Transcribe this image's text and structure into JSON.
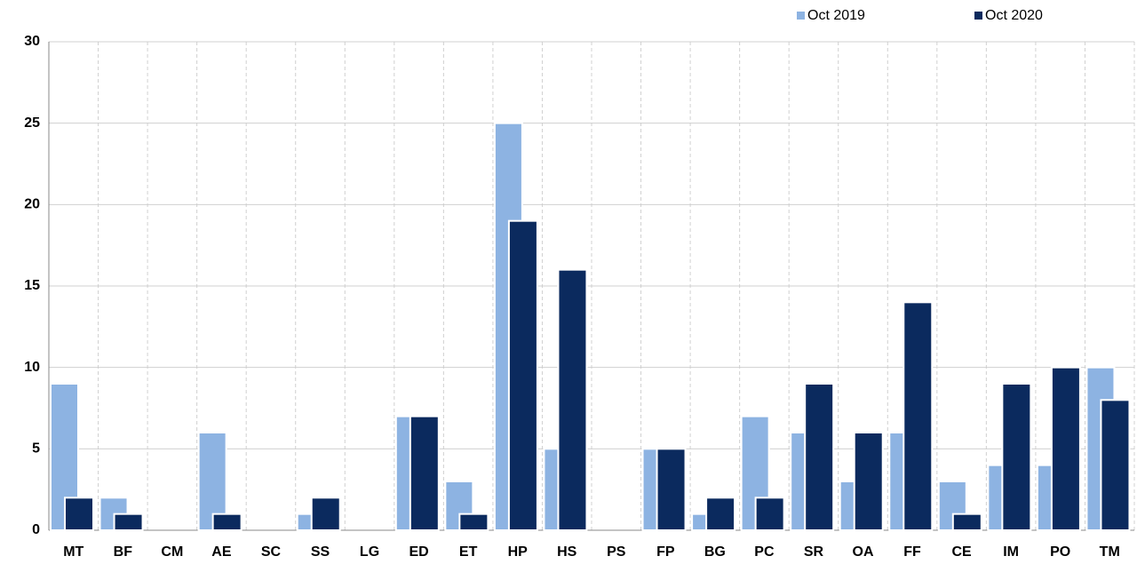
{
  "chart_data": {
    "type": "bar",
    "categories": [
      "MT",
      "BF",
      "CM",
      "AE",
      "SC",
      "SS",
      "LG",
      "ED",
      "ET",
      "HP",
      "HS",
      "PS",
      "FP",
      "BG",
      "PC",
      "SR",
      "OA",
      "FF",
      "CE",
      "IM",
      "PO",
      "TM"
    ],
    "series": [
      {
        "name": "Oct 2019",
        "color": "#8db3e2",
        "values": [
          9,
          2,
          0,
          6,
          0,
          1,
          0,
          7,
          3,
          25,
          5,
          0,
          5,
          1,
          7,
          6,
          3,
          6,
          3,
          4,
          4,
          10
        ]
      },
      {
        "name": "Oct 2020",
        "color": "#0b2a5e",
        "values": [
          2,
          1,
          0,
          1,
          0,
          2,
          0,
          7,
          1,
          19,
          16,
          0,
          5,
          2,
          2,
          9,
          6,
          14,
          1,
          9,
          10,
          8
        ]
      }
    ],
    "ylim": [
      0,
      30
    ],
    "yticks": [
      0,
      5,
      10,
      15,
      20,
      25,
      30
    ],
    "grid": true,
    "legend": "top-right"
  }
}
